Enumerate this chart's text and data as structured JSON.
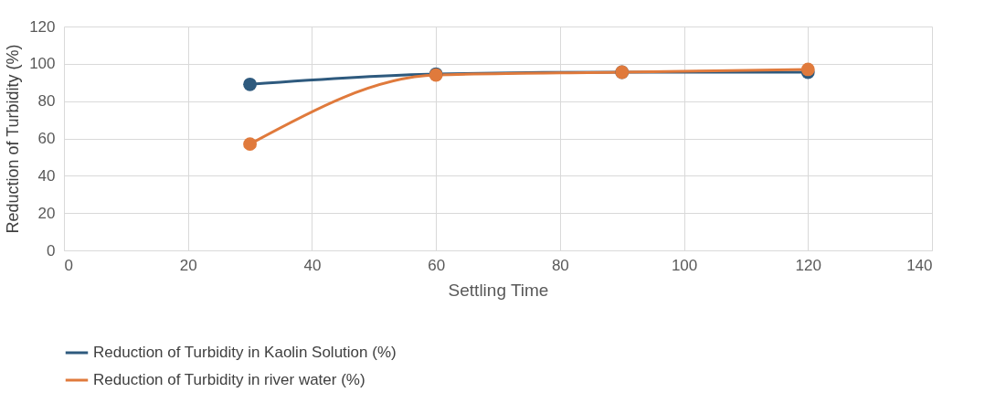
{
  "chart_data": {
    "type": "line",
    "xlabel": "Settling Time",
    "ylabel": "Reduction of Turbidity (%)",
    "x": [
      30,
      60,
      90,
      120
    ],
    "series": [
      {
        "name": "Reduction of Turbidity in Kaolin Solution (%)",
        "color": "#2e5a7e",
        "values": [
          89,
          94.5,
          95.5,
          95.5
        ]
      },
      {
        "name": "Reduction of Turbidity  in river water (%)",
        "color": "#e07a3c",
        "values": [
          57,
          94,
          95.5,
          97
        ]
      }
    ],
    "xlim": [
      0,
      140
    ],
    "xticks": [
      0,
      20,
      40,
      60,
      80,
      100,
      120,
      140
    ],
    "ylim": [
      0,
      120
    ],
    "yticks": [
      0,
      20,
      40,
      60,
      80,
      100,
      120
    ],
    "grid": true,
    "legend": "bottom",
    "marker": "circle",
    "line_style": "solid"
  }
}
